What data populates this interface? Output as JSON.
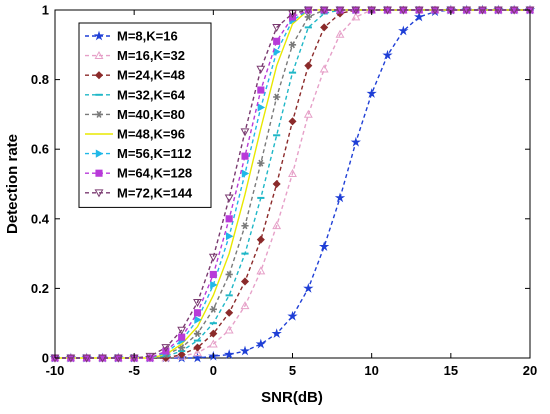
{
  "chart_data": {
    "type": "line",
    "title": "",
    "xlabel": "SNR(dB)",
    "ylabel": "Detection rate",
    "xlim": [
      -10,
      20
    ],
    "ylim": [
      0,
      1
    ],
    "xticks": [
      -10,
      -5,
      0,
      5,
      10,
      15,
      20
    ],
    "yticks": [
      0,
      0.2,
      0.4,
      0.6,
      0.8,
      1
    ],
    "xtick_labels": [
      "-10",
      "-5",
      "0",
      "5",
      "10",
      "15",
      "20"
    ],
    "ytick_labels": [
      "0",
      "0.2",
      "0.4",
      "0.6",
      "0.8",
      "1"
    ],
    "grid": false,
    "legend_position": "top-left",
    "x": [
      -10,
      -9,
      -8,
      -7,
      -6,
      -5,
      -4,
      -3,
      -2,
      -1,
      0,
      1,
      2,
      3,
      4,
      5,
      6,
      7,
      8,
      9,
      10,
      11,
      12,
      13,
      14,
      15,
      16,
      17,
      18,
      19,
      20
    ],
    "series": [
      {
        "name": "M=8,K=16",
        "color": "#1f3fd6",
        "marker": "star",
        "values": [
          0,
          0,
          0,
          0,
          0,
          0,
          0,
          0,
          0,
          0,
          0.005,
          0.01,
          0.02,
          0.04,
          0.07,
          0.12,
          0.2,
          0.32,
          0.46,
          0.62,
          0.76,
          0.87,
          0.94,
          0.98,
          0.995,
          1,
          1,
          1,
          1,
          1,
          1
        ]
      },
      {
        "name": "M=16,K=32",
        "color": "#e6a0c8",
        "marker": "triangle-up",
        "values": [
          0,
          0,
          0,
          0,
          0,
          0,
          0,
          0,
          0.005,
          0.015,
          0.04,
          0.08,
          0.15,
          0.25,
          0.38,
          0.53,
          0.7,
          0.83,
          0.93,
          0.98,
          1,
          1,
          1,
          1,
          1,
          1,
          1,
          1,
          1,
          1,
          1
        ]
      },
      {
        "name": "M=24,K=48",
        "color": "#8b2a2a",
        "marker": "diamond",
        "values": [
          0,
          0,
          0,
          0,
          0,
          0,
          0,
          0,
          0.01,
          0.03,
          0.07,
          0.13,
          0.22,
          0.34,
          0.5,
          0.68,
          0.84,
          0.95,
          0.99,
          1,
          1,
          1,
          1,
          1,
          1,
          1,
          1,
          1,
          1,
          1,
          1
        ]
      },
      {
        "name": "M=32,K=64",
        "color": "#1fb7c7",
        "marker": "dash",
        "values": [
          0,
          0,
          0,
          0,
          0,
          0,
          0,
          0.005,
          0.02,
          0.05,
          0.1,
          0.18,
          0.3,
          0.46,
          0.64,
          0.82,
          0.95,
          0.99,
          1,
          1,
          1,
          1,
          1,
          1,
          1,
          1,
          1,
          1,
          1,
          1,
          1
        ]
      },
      {
        "name": "M=40,K=80",
        "color": "#7a7a7a",
        "marker": "star6",
        "values": [
          0,
          0,
          0,
          0,
          0,
          0,
          0,
          0.01,
          0.03,
          0.07,
          0.14,
          0.24,
          0.38,
          0.56,
          0.75,
          0.9,
          0.98,
          1,
          1,
          1,
          1,
          1,
          1,
          1,
          1,
          1,
          1,
          1,
          1,
          1,
          1
        ]
      },
      {
        "name": "M=48,K=96",
        "color": "#e8e800",
        "marker": "none",
        "values": [
          0,
          0,
          0,
          0,
          0,
          0,
          0,
          0.01,
          0.04,
          0.09,
          0.18,
          0.3,
          0.47,
          0.66,
          0.84,
          0.96,
          1,
          1,
          1,
          1,
          1,
          1,
          1,
          1,
          1,
          1,
          1,
          1,
          1,
          1,
          1
        ]
      },
      {
        "name": "M=56,K=112",
        "color": "#20b8e8",
        "marker": "triangle-right",
        "values": [
          0,
          0,
          0,
          0,
          0,
          0,
          0,
          0.015,
          0.05,
          0.11,
          0.21,
          0.35,
          0.53,
          0.72,
          0.88,
          0.97,
          1,
          1,
          1,
          1,
          1,
          1,
          1,
          1,
          1,
          1,
          1,
          1,
          1,
          1,
          1
        ]
      },
      {
        "name": "M=64,K=128",
        "color": "#b83ad9",
        "marker": "square",
        "values": [
          0,
          0,
          0,
          0,
          0,
          0,
          0,
          0.02,
          0.06,
          0.13,
          0.24,
          0.4,
          0.58,
          0.77,
          0.91,
          0.98,
          1,
          1,
          1,
          1,
          1,
          1,
          1,
          1,
          1,
          1,
          1,
          1,
          1,
          1,
          1
        ]
      },
      {
        "name": "M=72,K=144",
        "color": "#7a3a70",
        "marker": "triangle-down",
        "values": [
          0,
          0,
          0,
          0,
          0,
          0,
          0.005,
          0.03,
          0.08,
          0.16,
          0.29,
          0.46,
          0.65,
          0.83,
          0.95,
          0.99,
          1,
          1,
          1,
          1,
          1,
          1,
          1,
          1,
          1,
          1,
          1,
          1,
          1,
          1,
          1
        ]
      }
    ]
  }
}
